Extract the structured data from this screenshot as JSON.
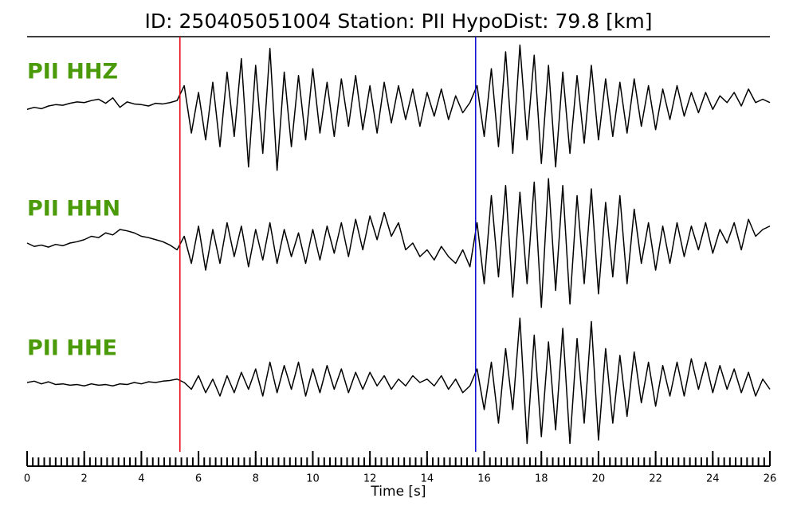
{
  "chart_data": {
    "type": "line",
    "title": "ID: 250405051004   Station: PII   HypoDist:    79.8 [km]",
    "xlabel": "Time [s]",
    "xlim": [
      0,
      26
    ],
    "xticks": [
      0,
      2,
      4,
      6,
      8,
      10,
      12,
      14,
      16,
      18,
      20,
      22,
      24,
      26
    ],
    "minor_tick_interval": 0.2,
    "ylim": [
      -1,
      1
    ],
    "markers": [
      {
        "x": 5.35,
        "color": "#e8000b"
      },
      {
        "x": 15.7,
        "color": "#0a0ad0"
      }
    ],
    "x": [
      0,
      0.25,
      0.5,
      0.75,
      1,
      1.25,
      1.5,
      1.75,
      2,
      2.25,
      2.5,
      2.75,
      3,
      3.25,
      3.5,
      3.75,
      4,
      4.25,
      4.5,
      4.75,
      5,
      5.25,
      5.5,
      5.75,
      6,
      6.25,
      6.5,
      6.75,
      7,
      7.25,
      7.5,
      7.75,
      8,
      8.25,
      8.5,
      8.75,
      9,
      9.25,
      9.5,
      9.75,
      10,
      10.25,
      10.5,
      10.75,
      11,
      11.25,
      11.5,
      11.75,
      12,
      12.25,
      12.5,
      12.75,
      13,
      13.25,
      13.5,
      13.75,
      14,
      14.25,
      14.5,
      14.75,
      15,
      15.25,
      15.5,
      15.75,
      16,
      16.25,
      16.5,
      16.75,
      17,
      17.25,
      17.5,
      17.75,
      18,
      18.25,
      18.5,
      18.75,
      19,
      19.25,
      19.5,
      19.75,
      20,
      20.25,
      20.5,
      20.75,
      21,
      21.25,
      21.5,
      21.75,
      22,
      22.25,
      22.5,
      22.75,
      23,
      23.25,
      23.5,
      23.75,
      24,
      24.25,
      24.5,
      24.75,
      25,
      25.25,
      25.5,
      25.75,
      26
    ],
    "series": [
      {
        "name": "PII HHZ",
        "color": "#000000",
        "label_color": "#4a9a0a",
        "values": [
          -0.05,
          -0.02,
          -0.04,
          0.0,
          0.02,
          0.01,
          0.04,
          0.06,
          0.05,
          0.08,
          0.1,
          0.04,
          0.12,
          -0.02,
          0.06,
          0.03,
          0.02,
          0.0,
          0.04,
          0.03,
          0.05,
          0.08,
          0.3,
          -0.4,
          0.2,
          -0.5,
          0.35,
          -0.6,
          0.5,
          -0.45,
          0.7,
          -0.9,
          0.6,
          -0.7,
          0.85,
          -0.95,
          0.5,
          -0.6,
          0.45,
          -0.5,
          0.55,
          -0.4,
          0.35,
          -0.45,
          0.4,
          -0.3,
          0.45,
          -0.35,
          0.3,
          -0.4,
          0.35,
          -0.25,
          0.3,
          -0.2,
          0.25,
          -0.3,
          0.2,
          -0.15,
          0.25,
          -0.2,
          0.15,
          -0.1,
          0.05,
          0.3,
          -0.45,
          0.55,
          -0.6,
          0.8,
          -0.7,
          0.9,
          -0.5,
          0.75,
          -0.85,
          0.6,
          -0.9,
          0.5,
          -0.7,
          0.45,
          -0.55,
          0.6,
          -0.5,
          0.4,
          -0.45,
          0.35,
          -0.4,
          0.4,
          -0.3,
          0.3,
          -0.35,
          0.25,
          -0.2,
          0.3,
          -0.15,
          0.2,
          -0.1,
          0.2,
          -0.05,
          0.15,
          0.05,
          0.2,
          0.0,
          0.25,
          0.05,
          0.1,
          0.05
        ]
      },
      {
        "name": "PII HHN",
        "color": "#000000",
        "label_color": "#4a9a0a",
        "values": [
          0.0,
          -0.05,
          -0.03,
          -0.06,
          -0.02,
          -0.04,
          0.0,
          0.02,
          0.05,
          0.1,
          0.08,
          0.15,
          0.12,
          0.2,
          0.18,
          0.15,
          0.1,
          0.08,
          0.05,
          0.02,
          -0.03,
          -0.1,
          0.1,
          -0.3,
          0.25,
          -0.4,
          0.2,
          -0.3,
          0.3,
          -0.2,
          0.25,
          -0.35,
          0.2,
          -0.25,
          0.3,
          -0.3,
          0.2,
          -0.2,
          0.15,
          -0.3,
          0.2,
          -0.25,
          0.25,
          -0.15,
          0.3,
          -0.2,
          0.35,
          -0.1,
          0.4,
          0.05,
          0.45,
          0.1,
          0.3,
          -0.1,
          0.0,
          -0.2,
          -0.1,
          -0.25,
          -0.05,
          -0.2,
          -0.3,
          -0.1,
          -0.35,
          0.3,
          -0.6,
          0.7,
          -0.5,
          0.85,
          -0.8,
          0.75,
          -0.6,
          0.9,
          -0.95,
          0.95,
          -0.7,
          0.85,
          -0.9,
          0.7,
          -0.6,
          0.8,
          -0.75,
          0.6,
          -0.5,
          0.7,
          -0.6,
          0.5,
          -0.3,
          0.3,
          -0.4,
          0.25,
          -0.3,
          0.3,
          -0.2,
          0.25,
          -0.1,
          0.3,
          -0.15,
          0.2,
          0.0,
          0.3,
          -0.1,
          0.35,
          0.1,
          0.2,
          0.25
        ]
      },
      {
        "name": "PII HHE",
        "color": "#000000",
        "label_color": "#4a9a0a",
        "values": [
          0.0,
          0.02,
          -0.02,
          0.01,
          -0.03,
          -0.02,
          -0.04,
          -0.03,
          -0.05,
          -0.02,
          -0.04,
          -0.03,
          -0.05,
          -0.02,
          -0.03,
          0.0,
          -0.02,
          0.01,
          0.0,
          0.02,
          0.03,
          0.05,
          0.0,
          -0.1,
          0.1,
          -0.15,
          0.05,
          -0.2,
          0.1,
          -0.15,
          0.15,
          -0.1,
          0.2,
          -0.2,
          0.3,
          -0.15,
          0.25,
          -0.1,
          0.3,
          -0.2,
          0.2,
          -0.15,
          0.25,
          -0.1,
          0.2,
          -0.15,
          0.15,
          -0.1,
          0.15,
          -0.05,
          0.1,
          -0.1,
          0.05,
          -0.05,
          0.1,
          0.0,
          0.05,
          -0.05,
          0.1,
          -0.1,
          0.05,
          -0.15,
          -0.05,
          0.2,
          -0.4,
          0.3,
          -0.6,
          0.5,
          -0.4,
          0.95,
          -0.9,
          0.7,
          -0.8,
          0.6,
          -0.7,
          0.8,
          -0.9,
          0.65,
          -0.6,
          0.9,
          -0.85,
          0.5,
          -0.6,
          0.4,
          -0.5,
          0.45,
          -0.3,
          0.3,
          -0.35,
          0.25,
          -0.2,
          0.3,
          -0.2,
          0.35,
          -0.1,
          0.3,
          -0.15,
          0.25,
          -0.1,
          0.2,
          -0.15,
          0.15,
          -0.2,
          0.05,
          -0.1
        ]
      }
    ]
  }
}
